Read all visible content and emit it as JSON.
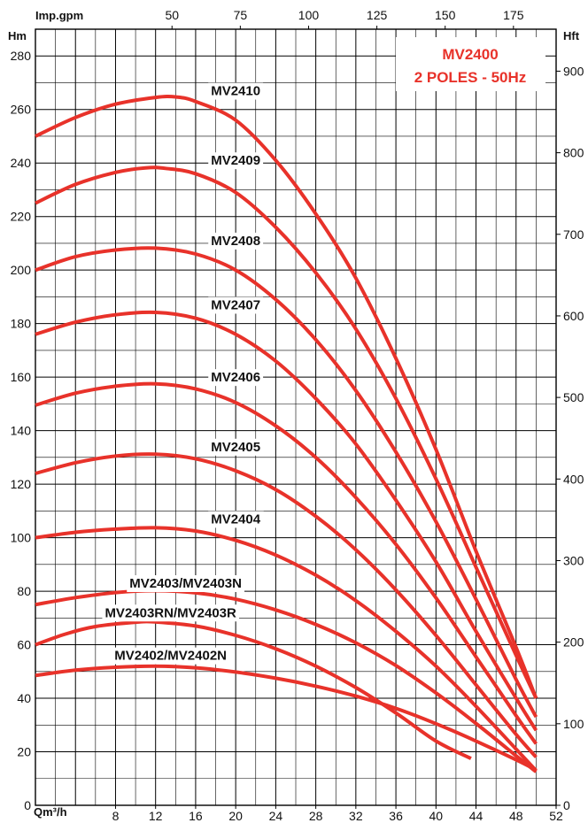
{
  "chart_data": {
    "type": "line",
    "title_lines": [
      "MV2400",
      "2 POLES - 50Hz"
    ],
    "title_color": "#e8322a",
    "curve_color": "#e8322a",
    "grid": true,
    "x_axis": {
      "label": "Qm³/h",
      "range": [
        0,
        52
      ],
      "ticks": [
        8,
        12,
        16,
        20,
        24,
        28,
        32,
        36,
        40,
        44,
        48,
        52
      ],
      "tick_labels": [
        "8",
        "12",
        "16",
        "20",
        "24",
        "28",
        "32",
        "36",
        "40",
        "44",
        "48",
        "52"
      ]
    },
    "x_axis_top": {
      "label": "Imp.gpm",
      "ticks": [
        50,
        75,
        100,
        125,
        150,
        175
      ],
      "tick_labels": [
        "50",
        "75",
        "100",
        "125",
        "150",
        "175"
      ]
    },
    "y_axis_left": {
      "label": "Hm",
      "range": [
        0,
        290
      ],
      "ticks": [
        0,
        20,
        40,
        60,
        80,
        100,
        120,
        140,
        160,
        180,
        200,
        220,
        240,
        260,
        280
      ],
      "tick_labels": [
        "0",
        "20",
        "40",
        "60",
        "80",
        "100",
        "120",
        "140",
        "160",
        "180",
        "200",
        "220",
        "240",
        "260",
        "280"
      ]
    },
    "y_axis_right": {
      "label": "Hft",
      "ticks": [
        0,
        100,
        200,
        300,
        400,
        500,
        600,
        700,
        800,
        900
      ],
      "tick_labels": [
        "0",
        "100",
        "200",
        "300",
        "400",
        "500",
        "600",
        "700",
        "800",
        "900"
      ]
    },
    "series": [
      {
        "name": "MV2410",
        "label_at": [
          20,
          267
        ],
        "points": [
          [
            0,
            250
          ],
          [
            4,
            257
          ],
          [
            8,
            262
          ],
          [
            12,
            264.5
          ],
          [
            14,
            264.7
          ],
          [
            16,
            263
          ],
          [
            20,
            256
          ],
          [
            24,
            241
          ],
          [
            28,
            221
          ],
          [
            32,
            197
          ],
          [
            36,
            167
          ],
          [
            40,
            133
          ],
          [
            44,
            95
          ],
          [
            48,
            59
          ],
          [
            50,
            40
          ]
        ]
      },
      {
        "name": "MV2409",
        "label_at": [
          20,
          241
        ],
        "points": [
          [
            0,
            225
          ],
          [
            4,
            232
          ],
          [
            8,
            236.5
          ],
          [
            11,
            238.2
          ],
          [
            13,
            238
          ],
          [
            16,
            236
          ],
          [
            20,
            229
          ],
          [
            24,
            216
          ],
          [
            28,
            199
          ],
          [
            32,
            178
          ],
          [
            36,
            152
          ],
          [
            40,
            122
          ],
          [
            44,
            89
          ],
          [
            48,
            56
          ],
          [
            50,
            40
          ]
        ]
      },
      {
        "name": "MV2408",
        "label_at": [
          20,
          211
        ],
        "points": [
          [
            0,
            200
          ],
          [
            4,
            205
          ],
          [
            8,
            207.5
          ],
          [
            12,
            208.2
          ],
          [
            16,
            206
          ],
          [
            20,
            200
          ],
          [
            24,
            189
          ],
          [
            28,
            174
          ],
          [
            32,
            155
          ],
          [
            36,
            132
          ],
          [
            40,
            106
          ],
          [
            44,
            77
          ],
          [
            48,
            47
          ],
          [
            50,
            33
          ]
        ]
      },
      {
        "name": "MV2407",
        "label_at": [
          20,
          187
        ],
        "points": [
          [
            0,
            176
          ],
          [
            4,
            180.5
          ],
          [
            8,
            183.3
          ],
          [
            12,
            184.2
          ],
          [
            16,
            182
          ],
          [
            20,
            176
          ],
          [
            24,
            166
          ],
          [
            28,
            152
          ],
          [
            32,
            135
          ],
          [
            36,
            114
          ],
          [
            40,
            91
          ],
          [
            44,
            65
          ],
          [
            48,
            40
          ],
          [
            50,
            28
          ]
        ]
      },
      {
        "name": "MV2406",
        "label_at": [
          20,
          160
        ],
        "points": [
          [
            0,
            149.5
          ],
          [
            4,
            154
          ],
          [
            8,
            156.6
          ],
          [
            12,
            157.5
          ],
          [
            16,
            155.6
          ],
          [
            20,
            150.5
          ],
          [
            24,
            141.8
          ],
          [
            28,
            130
          ],
          [
            32,
            115
          ],
          [
            36,
            97.5
          ],
          [
            40,
            77.5
          ],
          [
            44,
            55.5
          ],
          [
            48,
            33.5
          ],
          [
            50,
            23
          ]
        ]
      },
      {
        "name": "MV2405",
        "label_at": [
          20,
          134
        ],
        "points": [
          [
            0,
            124
          ],
          [
            4,
            128
          ],
          [
            8,
            130.5
          ],
          [
            12,
            131.2
          ],
          [
            16,
            129.5
          ],
          [
            20,
            125
          ],
          [
            24,
            118
          ],
          [
            28,
            108
          ],
          [
            32,
            95.5
          ],
          [
            36,
            80.5
          ],
          [
            40,
            63.5
          ],
          [
            44,
            45
          ],
          [
            48,
            26.5
          ],
          [
            50,
            18
          ]
        ]
      },
      {
        "name": "MV2404",
        "label_at": [
          20,
          107
        ],
        "points": [
          [
            0,
            100
          ],
          [
            4,
            102
          ],
          [
            8,
            103.2
          ],
          [
            12,
            103.7
          ],
          [
            16,
            102.5
          ],
          [
            20,
            99
          ],
          [
            24,
            93.5
          ],
          [
            28,
            86
          ],
          [
            32,
            76.5
          ],
          [
            36,
            65
          ],
          [
            40,
            52
          ],
          [
            44,
            37
          ],
          [
            48,
            21
          ],
          [
            50,
            13
          ]
        ]
      },
      {
        "name": "MV2403/MV2403N",
        "label_at": [
          15,
          83
        ],
        "points": [
          [
            0,
            75
          ],
          [
            4,
            77.6
          ],
          [
            8,
            79.5
          ],
          [
            12,
            80.2
          ],
          [
            16,
            79.4
          ],
          [
            20,
            77
          ],
          [
            24,
            73
          ],
          [
            28,
            67.6
          ],
          [
            32,
            60.7
          ],
          [
            36,
            52.2
          ],
          [
            40,
            42
          ],
          [
            44,
            30.6
          ],
          [
            48,
            18.5
          ],
          [
            50,
            12.5
          ]
        ]
      },
      {
        "name": "MV2403RN/MV2403R",
        "label_at": [
          13.5,
          72
        ],
        "points": [
          [
            0,
            60
          ],
          [
            3,
            64
          ],
          [
            6,
            66.8
          ],
          [
            10,
            68.4
          ],
          [
            12,
            68.5
          ],
          [
            16,
            67
          ],
          [
            20,
            63.5
          ],
          [
            24,
            58.5
          ],
          [
            28,
            52
          ],
          [
            32,
            44
          ],
          [
            36,
            34.5
          ],
          [
            40,
            24
          ],
          [
            43.5,
            17.5
          ]
        ]
      },
      {
        "name": "MV2402/MV2402N",
        "label_at": [
          13.5,
          56
        ],
        "points": [
          [
            0,
            48.5
          ],
          [
            4,
            50.5
          ],
          [
            8,
            51.6
          ],
          [
            12,
            52
          ],
          [
            16,
            51.4
          ],
          [
            20,
            49.8
          ],
          [
            24,
            47.5
          ],
          [
            28,
            44.5
          ],
          [
            32,
            40.8
          ],
          [
            36,
            36.2
          ],
          [
            40,
            30.5
          ],
          [
            44,
            24
          ],
          [
            48,
            17
          ],
          [
            50,
            13.2
          ]
        ]
      }
    ]
  }
}
